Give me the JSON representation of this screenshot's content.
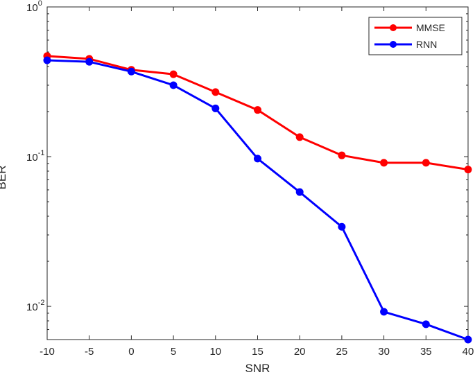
{
  "chart_data": {
    "type": "line",
    "title": "",
    "xlabel": "SNR",
    "ylabel": "BER",
    "x": [
      -10,
      -5,
      0,
      5,
      10,
      15,
      20,
      25,
      30,
      35,
      40
    ],
    "xlim": [
      -10,
      40
    ],
    "ylim": [
      0.006,
      1
    ],
    "yscale": "log",
    "x_tick_labels": [
      "-10",
      "-5",
      "0",
      "5",
      "10",
      "15",
      "20",
      "25",
      "30",
      "35",
      "40"
    ],
    "y_ticks": [
      {
        "value": 1,
        "base": "10",
        "exp": "0"
      },
      {
        "value": 0.1,
        "base": "10",
        "exp": "-1"
      },
      {
        "value": 0.01,
        "base": "10",
        "exp": "-2"
      }
    ],
    "grid": false,
    "legend_position": "top-right",
    "series": [
      {
        "name": "MMSE",
        "color": "#ff0000",
        "marker": "circle",
        "values": [
          0.47,
          0.45,
          0.38,
          0.355,
          0.27,
          0.205,
          0.135,
          0.102,
          0.091,
          0.091,
          0.082
        ]
      },
      {
        "name": "RNN",
        "color": "#0000ff",
        "marker": "circle",
        "values": [
          0.44,
          0.43,
          0.37,
          0.3,
          0.21,
          0.097,
          0.058,
          0.034,
          0.0092,
          0.0076,
          0.006
        ]
      }
    ]
  }
}
